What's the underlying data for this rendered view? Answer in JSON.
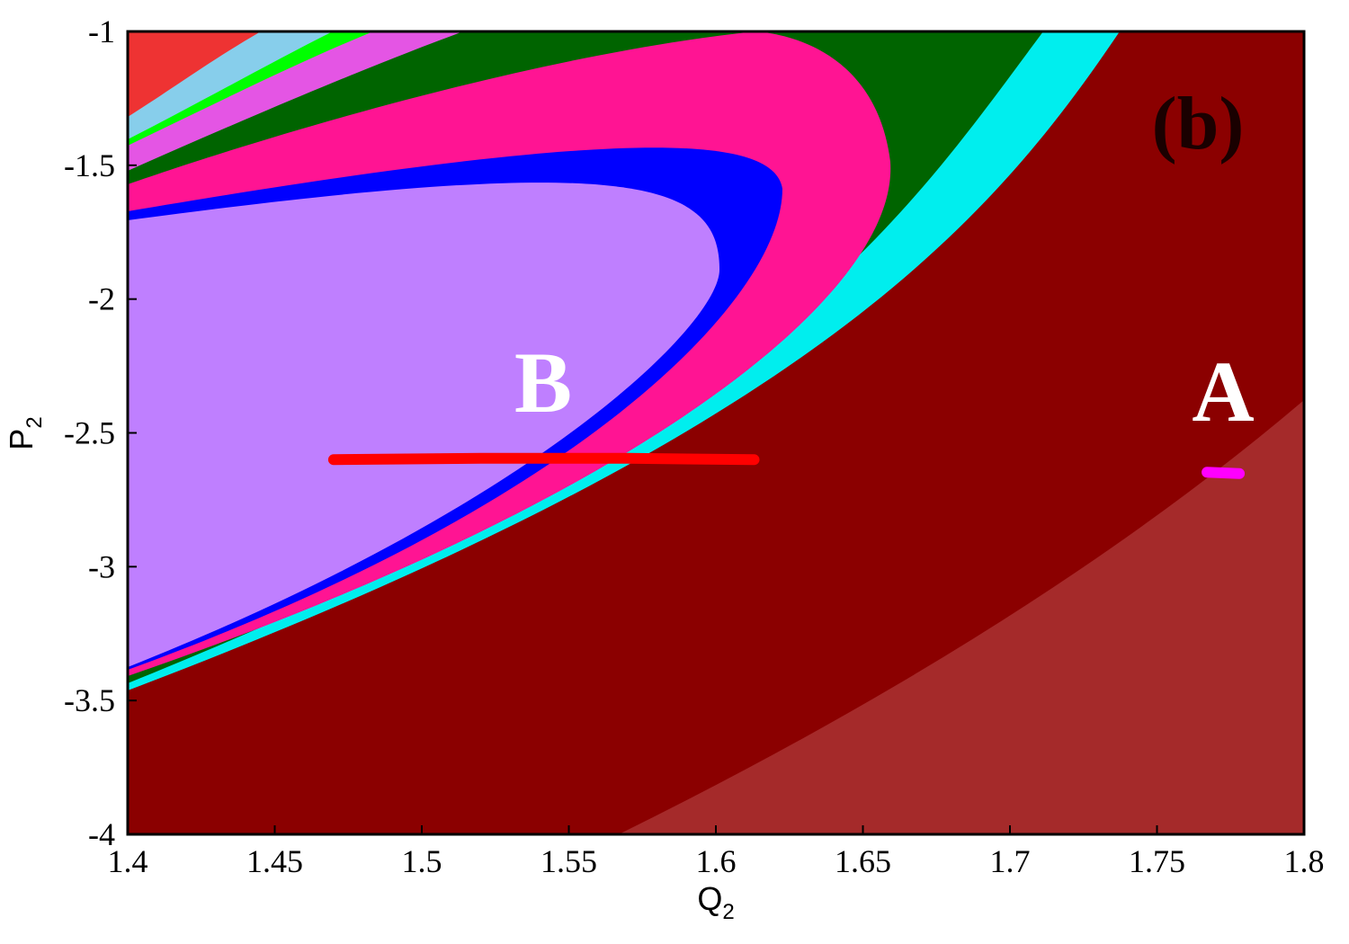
{
  "chart_data": {
    "type": "line",
    "xlabel": "Q",
    "xlabel_subscript": "2",
    "ylabel": "P",
    "ylabel_subscript": "2",
    "xlim": [
      1.4,
      1.8
    ],
    "xticks": [
      1.4,
      1.45,
      1.5,
      1.55,
      1.6,
      1.65,
      1.7,
      1.75,
      1.8
    ],
    "ylim": [
      -4,
      -1
    ],
    "yticks": [
      -1,
      -1.5,
      -2,
      -2.5,
      -3,
      -3.5,
      -4
    ],
    "series": [
      {
        "color": "#ff0000",
        "x": [
          1.47,
          1.52,
          1.57,
          1.613
        ],
        "values": [
          -2.6,
          -2.595,
          -2.595,
          -2.6
        ]
      },
      {
        "color": "#ff00ff",
        "x": [
          1.767,
          1.778
        ],
        "values": [
          -2.647,
          -2.652
        ]
      }
    ],
    "annotations": [
      "(b)",
      "B",
      "A"
    ]
  }
}
